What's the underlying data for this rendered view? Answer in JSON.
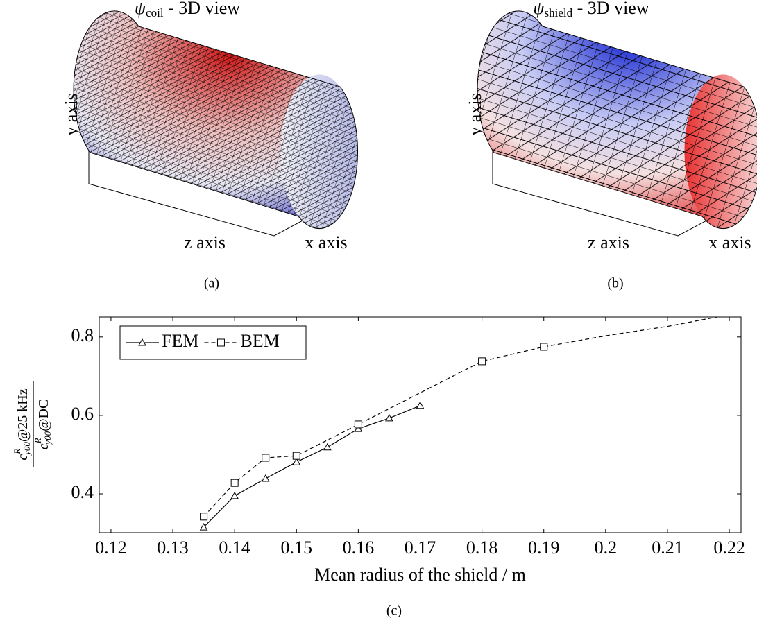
{
  "panels": [
    {
      "title_symbol": "ψ",
      "title_subscript": "coil",
      "title_rest": " - 3D view",
      "y_axis": "y axis",
      "z_axis": "z axis",
      "x_axis": "x axis",
      "caption": "(a)"
    },
    {
      "title_symbol": "ψ",
      "title_subscript": "shield",
      "title_rest": " - 3D view",
      "y_axis": "y axis",
      "z_axis": "z axis",
      "x_axis": "x axis",
      "caption": "(b)"
    }
  ],
  "chart_data": {
    "type": "line",
    "xlabel": "Mean radius of the shield / m",
    "ylabel": {
      "numerator": {
        "base": "c",
        "sup": "R",
        "sub": "y00",
        "rest": "@25 kHz"
      },
      "denominator": {
        "base": "c",
        "sup": "R",
        "sub": "y00",
        "rest": "@DC"
      }
    },
    "caption": "(c)",
    "xlim": [
      0.1181,
      0.2219
    ],
    "ylim": [
      0.301,
      0.851
    ],
    "xticks": [
      0.12,
      0.13,
      0.14,
      0.15,
      0.16,
      0.17,
      0.18,
      0.19,
      0.2,
      0.21,
      0.22
    ],
    "yticks": [
      0.4,
      0.6,
      0.8
    ],
    "legend": "upper left",
    "series": [
      {
        "name": "FEM",
        "color": "#000000",
        "dash": false,
        "marker": "triangle",
        "x": [
          0.135,
          0.14,
          0.145,
          0.15,
          0.155,
          0.16,
          0.165,
          0.17
        ],
        "values": [
          0.315,
          0.395,
          0.439,
          0.481,
          0.519,
          0.566,
          0.593,
          0.625
        ],
        "marker_shown": [
          true,
          true,
          true,
          true,
          true,
          true,
          true,
          true
        ]
      },
      {
        "name": "BEM",
        "color": "#000000",
        "dash": true,
        "marker": "square",
        "x": [
          0.135,
          0.14,
          0.145,
          0.15,
          0.16,
          0.18,
          0.19,
          0.2,
          0.21,
          0.218
        ],
        "values": [
          0.342,
          0.428,
          0.492,
          0.497,
          0.577,
          0.738,
          0.775,
          0.803,
          0.827,
          0.851
        ],
        "marker_shown": [
          true,
          true,
          true,
          true,
          true,
          true,
          true,
          false,
          false,
          false
        ]
      }
    ]
  }
}
